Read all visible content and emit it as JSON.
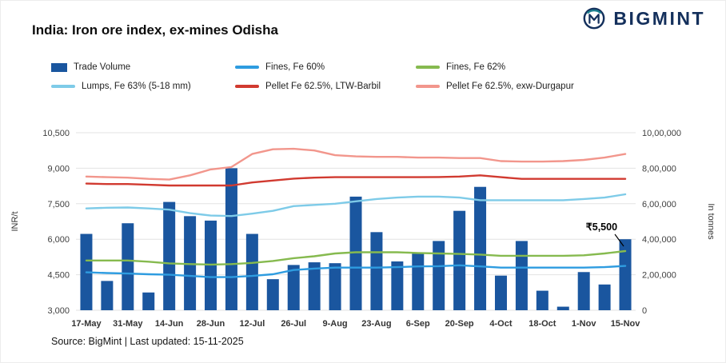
{
  "header": {
    "title": "India: Iron ore index, ex-mines Odisha",
    "logo_text": "BIGMINT",
    "logo_color": "#14305c"
  },
  "legend": {
    "items": [
      {
        "label": "Trade Volume",
        "color": "#1a569f",
        "type": "bar"
      },
      {
        "label": "Fines, Fe 60%",
        "color": "#2e9ce0",
        "type": "line"
      },
      {
        "label": "Fines, Fe 62%",
        "color": "#86ba4f",
        "type": "line"
      },
      {
        "label": "Lumps, Fe 63% (5-18 mm)",
        "color": "#7ecbe8",
        "type": "line"
      },
      {
        "label": "Pellet Fe 62.5%, LTW-Barbil",
        "color": "#d13a30",
        "type": "line"
      },
      {
        "label": "Pellet Fe 62.5%, exw-Durgapur",
        "color": "#f2968c",
        "type": "line"
      }
    ]
  },
  "footer": {
    "source": "Source: BigMint | Last updated: 15-11-2025"
  },
  "chart_data": {
    "type": "combo",
    "title": "India: Iron ore index, ex-mines Odisha",
    "x_labels": [
      "17-May",
      "31-May",
      "14-Jun",
      "28-Jun",
      "12-Jul",
      "26-Jul",
      "9-Aug",
      "23-Aug",
      "6-Sep",
      "20-Sep",
      "4-Oct",
      "18-Oct",
      "1-Nov",
      "15-Nov"
    ],
    "label_every_n_points": 2,
    "left_axis": {
      "label": "INR/t",
      "min": 3000,
      "max": 10500,
      "ticks": [
        "3,000",
        "4,500",
        "6,000",
        "7,500",
        "9,000",
        "10,500"
      ]
    },
    "right_axis": {
      "label": "In tonnes",
      "min": 0,
      "max": 1000000,
      "ticks": [
        "0",
        "2,00,000",
        "4,00,000",
        "6,00,000",
        "8,00,000",
        "10,00,000"
      ]
    },
    "grid": "horizontal",
    "legend_position": "top",
    "bars": {
      "name": "Trade Volume",
      "axis": "right",
      "color": "#1a569f",
      "values": [
        430000,
        165000,
        490000,
        100000,
        610000,
        530000,
        505000,
        800000,
        430000,
        175000,
        255000,
        270000,
        265000,
        640000,
        440000,
        275000,
        320000,
        390000,
        560000,
        695000,
        195000,
        390000,
        110000,
        20000,
        215000,
        145000,
        400000
      ]
    },
    "lines": [
      {
        "name": "Fines, Fe 60%",
        "axis": "left",
        "color": "#2e9ce0",
        "values": [
          4600,
          4570,
          4550,
          4520,
          4500,
          4450,
          4400,
          4400,
          4450,
          4520,
          4700,
          4760,
          4800,
          4800,
          4800,
          4820,
          4850,
          4860,
          4900,
          4850,
          4800,
          4800,
          4800,
          4800,
          4800,
          4820,
          4870
        ]
      },
      {
        "name": "Fines, Fe 62%",
        "axis": "left",
        "color": "#86ba4f",
        "values": [
          5100,
          5100,
          5100,
          5050,
          4980,
          4950,
          4930,
          4950,
          5000,
          5080,
          5200,
          5280,
          5400,
          5450,
          5450,
          5450,
          5420,
          5400,
          5380,
          5350,
          5300,
          5300,
          5300,
          5300,
          5320,
          5400,
          5500
        ]
      },
      {
        "name": "Lumps, Fe 63% (5-18 mm)",
        "axis": "left",
        "color": "#7ecbe8",
        "values": [
          7300,
          7330,
          7340,
          7300,
          7250,
          7100,
          7000,
          6980,
          7080,
          7200,
          7400,
          7450,
          7500,
          7600,
          7700,
          7760,
          7800,
          7800,
          7760,
          7650,
          7650,
          7650,
          7650,
          7650,
          7700,
          7760,
          7900
        ]
      },
      {
        "name": "Pellet Fe 62.5%, LTW-Barbil",
        "axis": "left",
        "color": "#d13a30",
        "values": [
          8350,
          8330,
          8330,
          8300,
          8270,
          8270,
          8270,
          8270,
          8400,
          8480,
          8560,
          8600,
          8620,
          8620,
          8620,
          8620,
          8620,
          8630,
          8650,
          8700,
          8620,
          8550,
          8550,
          8550,
          8550,
          8550,
          8550
        ]
      },
      {
        "name": "Pellet Fe 62.5%, exw-Durgapur",
        "axis": "left",
        "color": "#f2968c",
        "values": [
          8650,
          8620,
          8600,
          8550,
          8520,
          8700,
          8950,
          9050,
          9600,
          9800,
          9820,
          9750,
          9550,
          9500,
          9480,
          9480,
          9450,
          9450,
          9430,
          9430,
          9300,
          9280,
          9280,
          9300,
          9350,
          9450,
          9600
        ]
      }
    ],
    "annotation": {
      "text": "₹5,500",
      "series": "Fines, Fe 62%",
      "point_index": 26,
      "value": 5500
    }
  }
}
